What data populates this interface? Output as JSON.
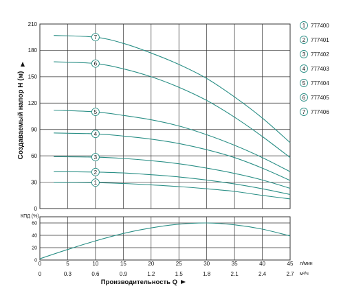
{
  "chart_data": [
    {
      "type": "line",
      "ylabel": "Создаваемый напор H (м)",
      "ylim": [
        0,
        210
      ],
      "xlim": [
        0,
        45
      ],
      "yticks": [
        0,
        30,
        60,
        90,
        120,
        150,
        180,
        210
      ],
      "grid": true,
      "legend_position": "right",
      "series": [
        {
          "name": "777400",
          "marker": "1",
          "x": [
            2.5,
            10,
            15,
            20,
            25,
            30,
            35,
            40,
            45
          ],
          "values": [
            30,
            29.5,
            28.5,
            27,
            25,
            22.5,
            19.5,
            15,
            11
          ]
        },
        {
          "name": "777401",
          "marker": "2",
          "x": [
            2.5,
            10,
            15,
            20,
            25,
            30,
            35,
            40,
            45
          ],
          "values": [
            42,
            41.5,
            40.5,
            38.5,
            36,
            32.5,
            28,
            22.5,
            16
          ]
        },
        {
          "name": "777402",
          "marker": "3",
          "x": [
            2.5,
            10,
            15,
            20,
            25,
            30,
            35,
            40,
            45
          ],
          "values": [
            59,
            58.5,
            57,
            54.5,
            51,
            46,
            40,
            32.5,
            23
          ]
        },
        {
          "name": "777403",
          "marker": "4",
          "x": [
            2.5,
            10,
            15,
            20,
            25,
            30,
            35,
            40,
            45
          ],
          "values": [
            86,
            85,
            82.5,
            79,
            74,
            67,
            58,
            46,
            32
          ]
        },
        {
          "name": "777404",
          "marker": "5",
          "x": [
            2.5,
            10,
            15,
            20,
            25,
            30,
            35,
            40,
            45
          ],
          "values": [
            112,
            110,
            106,
            101,
            94,
            84,
            72,
            58,
            42
          ]
        },
        {
          "name": "777405",
          "marker": "6",
          "x": [
            2.5,
            10,
            15,
            20,
            25,
            30,
            35,
            40,
            45
          ],
          "values": [
            167,
            165,
            159,
            150,
            138,
            123,
            104,
            82,
            58
          ]
        },
        {
          "name": "777406",
          "marker": "7",
          "x": [
            2.5,
            10,
            15,
            20,
            25,
            30,
            35,
            40,
            45
          ],
          "values": [
            197,
            195,
            188,
            177,
            164,
            148,
            127,
            103,
            75
          ]
        }
      ]
    },
    {
      "type": "line",
      "ylabel": "КПД (%)",
      "ylim": [
        0,
        70
      ],
      "xlim": [
        0,
        45
      ],
      "yticks": [
        0,
        20,
        40,
        60
      ],
      "grid": true,
      "series": [
        {
          "name": "КПД",
          "x": [
            0,
            5,
            10,
            15,
            20,
            25,
            30,
            35,
            40,
            45
          ],
          "values": [
            2,
            17,
            31,
            43,
            52,
            58,
            60,
            57,
            50,
            39
          ]
        }
      ]
    }
  ],
  "x_axis": {
    "label": "Производительность Q",
    "flow_lmin_ticks": [
      "0",
      "5",
      "10",
      "15",
      "20",
      "25",
      "30",
      "35",
      "40",
      "45"
    ],
    "flow_lmin_values": [
      0,
      5,
      10,
      15,
      20,
      25,
      30,
      35,
      40,
      45
    ],
    "flow_m3h_ticks": [
      "0",
      "0.3",
      "0.6",
      "0.9",
      "1.2",
      "1.5",
      "1.8",
      "2.1",
      "2.4",
      "2.7"
    ],
    "unit_lmin": "л/мин",
    "unit_m3h": "м³/ч"
  },
  "colors": {
    "curve": "#2a8f86",
    "grid": "#333333",
    "marker_stroke": "#2a8f86",
    "axis_text": "#111111"
  }
}
